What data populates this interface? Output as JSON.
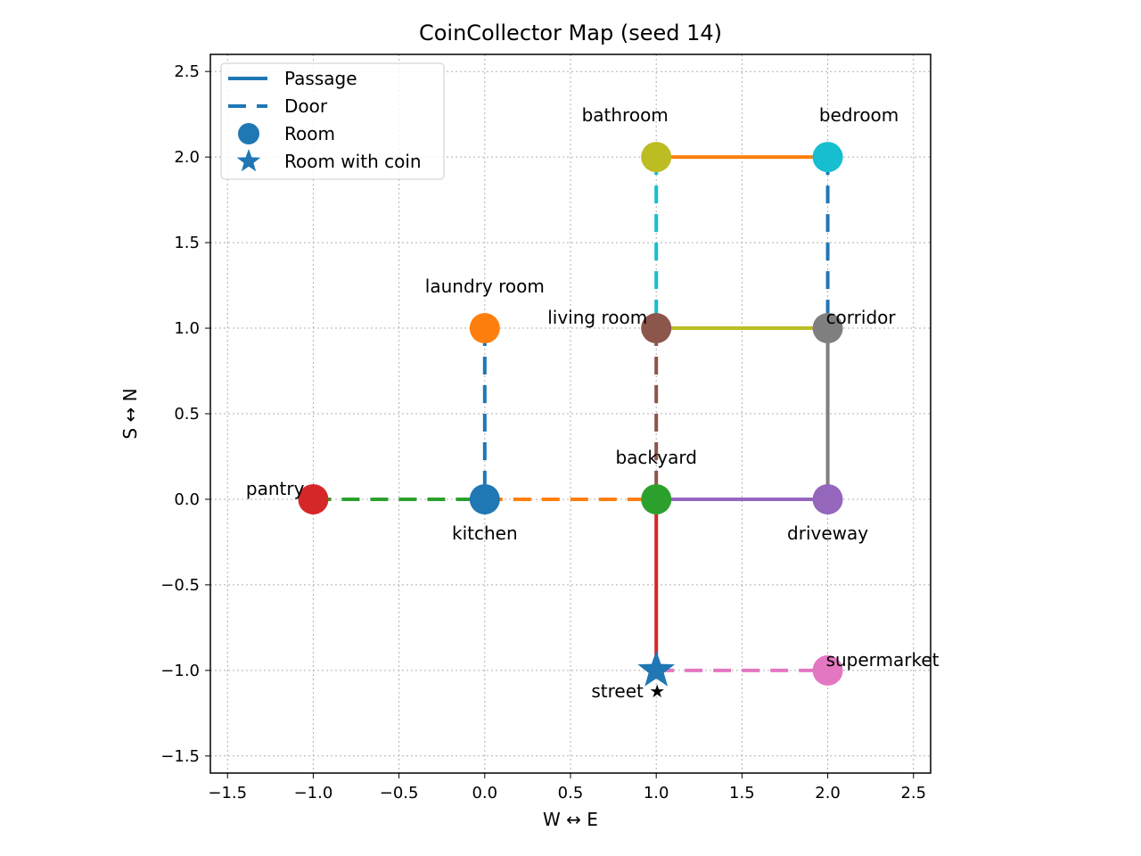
{
  "chart_data": {
    "type": "scatter",
    "title": "CoinCollector Map (seed 14)",
    "xlabel": "W ↔ E",
    "ylabel": "S ↔ N",
    "xlim": [
      -1.6,
      2.6
    ],
    "ylim": [
      -1.6,
      2.6
    ],
    "grid": true,
    "legend_position": "top-left",
    "x_ticks": [
      -1.5,
      -1.0,
      -0.5,
      0.0,
      0.5,
      1.0,
      1.5,
      2.0,
      2.5
    ],
    "y_ticks": [
      -1.5,
      -1.0,
      -0.5,
      0.0,
      0.5,
      1.0,
      1.5,
      2.0,
      2.5
    ],
    "x_tick_labels": [
      "−1.5",
      "−1.0",
      "−0.5",
      "0.0",
      "0.5",
      "1.0",
      "1.5",
      "2.0",
      "2.5"
    ],
    "y_tick_labels": [
      "−1.5",
      "−1.0",
      "−0.5",
      "0.0",
      "0.5",
      "1.0",
      "1.5",
      "2.0",
      "2.5"
    ],
    "legend": [
      {
        "label": "Passage",
        "kind": "line",
        "color": "#1f77b4"
      },
      {
        "label": "Door",
        "kind": "dash",
        "color": "#1f77b4"
      },
      {
        "label": "Room",
        "kind": "circle",
        "color": "#1f77b4"
      },
      {
        "label": "Room with coin",
        "kind": "star",
        "color": "#1f77b4"
      }
    ],
    "rooms": [
      {
        "name": "kitchen",
        "label": "kitchen",
        "x": 0,
        "y": 0,
        "color": "#1f77b4",
        "coin": false,
        "label_pos": "below"
      },
      {
        "name": "laundry room",
        "label": "laundry room",
        "x": 0,
        "y": 1,
        "color": "#ff7f0e",
        "coin": false,
        "label_pos": "above"
      },
      {
        "name": "backyard",
        "label": "backyard",
        "x": 1,
        "y": 0,
        "color": "#2ca02c",
        "coin": false,
        "label_pos": "above"
      },
      {
        "name": "pantry",
        "label": "pantry",
        "x": -1,
        "y": 0,
        "color": "#d62728",
        "coin": false,
        "label_pos": "left"
      },
      {
        "name": "driveway",
        "label": "driveway",
        "x": 2,
        "y": 0,
        "color": "#9467bd",
        "coin": false,
        "label_pos": "below"
      },
      {
        "name": "living room",
        "label": "living room",
        "x": 1,
        "y": 1,
        "color": "#8c564b",
        "coin": false,
        "label_pos": "left"
      },
      {
        "name": "supermarket",
        "label": "supermarket",
        "x": 2,
        "y": -1,
        "color": "#e377c2",
        "coin": false,
        "label_pos": "right"
      },
      {
        "name": "corridor",
        "label": "corridor",
        "x": 2,
        "y": 1,
        "color": "#7f7f7f",
        "coin": false,
        "label_pos": "right"
      },
      {
        "name": "bathroom",
        "label": "bathroom",
        "x": 1,
        "y": 2,
        "color": "#bcbd22",
        "coin": false,
        "label_pos": "above-left"
      },
      {
        "name": "bedroom",
        "label": "bedroom",
        "x": 2,
        "y": 2,
        "color": "#17becf",
        "coin": false,
        "label_pos": "above-right"
      },
      {
        "name": "street",
        "label": "street ★",
        "x": 1,
        "y": -1,
        "color": "#1f77b4",
        "coin": true,
        "label_pos": "below-left"
      }
    ],
    "connections": [
      {
        "from": "bathroom",
        "to": "bedroom",
        "kind": "passage",
        "color": "#ff7f0e"
      },
      {
        "from": "living room",
        "to": "corridor",
        "kind": "passage",
        "color": "#bcbd22"
      },
      {
        "from": "corridor",
        "to": "driveway",
        "kind": "passage",
        "color": "#7f7f7f"
      },
      {
        "from": "backyard",
        "to": "driveway",
        "kind": "passage",
        "color": "#9467bd"
      },
      {
        "from": "backyard",
        "to": "street",
        "kind": "passage",
        "color": "#d62728"
      },
      {
        "from": "bathroom",
        "to": "living room",
        "kind": "door",
        "color": "#17becf"
      },
      {
        "from": "bedroom",
        "to": "corridor",
        "kind": "door",
        "color": "#1f77b4"
      },
      {
        "from": "laundry room",
        "to": "kitchen",
        "kind": "door",
        "color": "#1f77b4"
      },
      {
        "from": "living room",
        "to": "backyard",
        "kind": "door",
        "color": "#8c564b"
      },
      {
        "from": "pantry",
        "to": "kitchen",
        "kind": "door",
        "color": "#2ca02c"
      },
      {
        "from": "kitchen",
        "to": "backyard",
        "kind": "door",
        "color": "#ff7f0e"
      },
      {
        "from": "street",
        "to": "supermarket",
        "kind": "door",
        "color": "#e377c2"
      }
    ]
  }
}
